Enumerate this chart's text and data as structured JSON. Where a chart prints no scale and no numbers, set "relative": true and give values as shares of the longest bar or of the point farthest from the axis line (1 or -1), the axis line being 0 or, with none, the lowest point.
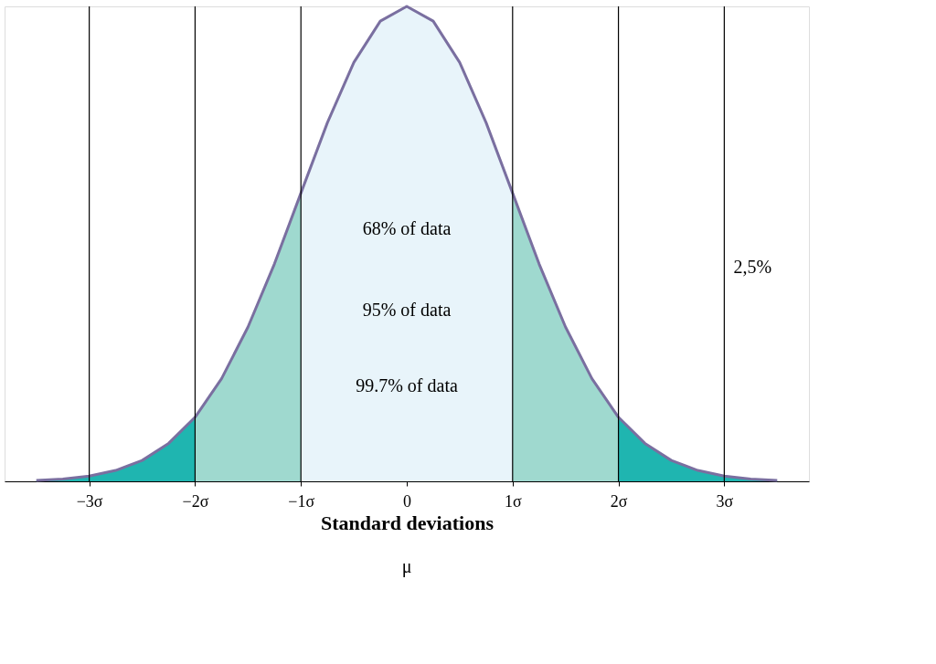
{
  "chart_data": {
    "type": "area",
    "relative": true,
    "xlabel": "Standard deviations",
    "xlim": [
      -3.8,
      3.8
    ],
    "xticks": [
      {
        "value": -3,
        "label": "−3σ"
      },
      {
        "value": -2,
        "label": "−2σ"
      },
      {
        "value": -1,
        "label": "−1σ"
      },
      {
        "value": 0,
        "label": "0"
      },
      {
        "value": 1,
        "label": "1σ"
      },
      {
        "value": 2,
        "label": "2σ"
      },
      {
        "value": 3,
        "label": "3σ"
      }
    ],
    "grid": false,
    "series": [
      {
        "color": "#1fb5b0",
        "x": [
          -3.5,
          -3.25,
          -3,
          -2.75,
          -2.5,
          -2.25,
          -2
        ],
        "values": [
          0.002,
          0.005,
          0.011,
          0.023,
          0.044,
          0.08,
          0.135
        ]
      },
      {
        "color": "#9fd9cf",
        "x": [
          -2,
          -1.75,
          -1.5,
          -1.25,
          -1
        ],
        "values": [
          0.135,
          0.216,
          0.325,
          0.458,
          0.607
        ]
      },
      {
        "color": "#e8f4fa",
        "x": [
          -1,
          -0.75,
          -0.5,
          -0.25,
          0,
          0.25,
          0.5,
          0.75,
          1
        ],
        "values": [
          0.607,
          0.755,
          0.882,
          0.969,
          1,
          0.969,
          0.882,
          0.755,
          0.607
        ]
      },
      {
        "color": "#9fd9cf",
        "x": [
          1,
          1.25,
          1.5,
          1.75,
          2
        ],
        "values": [
          0.607,
          0.458,
          0.325,
          0.216,
          0.135
        ]
      },
      {
        "color": "#1fb5b0",
        "x": [
          2,
          2.25,
          2.5,
          2.75,
          3,
          3.25,
          3.5
        ],
        "values": [
          0.135,
          0.08,
          0.044,
          0.023,
          0.011,
          0.005,
          0.002
        ]
      },
      {
        "type": "line",
        "color": "#7a6fa0",
        "x": [
          -3.5,
          -3.25,
          -3,
          -2.75,
          -2.5,
          -2.25,
          -2,
          -1.75,
          -1.5,
          -1.25,
          -1,
          -0.75,
          -0.5,
          -0.25,
          0,
          0.25,
          0.5,
          0.75,
          1,
          1.25,
          1.5,
          1.75,
          2,
          2.25,
          2.5,
          2.75,
          3,
          3.25,
          3.5
        ],
        "values": [
          0.002,
          0.005,
          0.011,
          0.023,
          0.044,
          0.08,
          0.135,
          0.216,
          0.325,
          0.458,
          0.607,
          0.755,
          0.882,
          0.969,
          1,
          0.969,
          0.882,
          0.755,
          0.607,
          0.458,
          0.325,
          0.216,
          0.135,
          0.08,
          0.044,
          0.023,
          0.011,
          0.005,
          0.002
        ]
      }
    ],
    "ref_lines": [
      {
        "axis": "x",
        "value": -3,
        "color": "#000000"
      },
      {
        "axis": "x",
        "value": -2,
        "color": "#000000"
      },
      {
        "axis": "x",
        "value": -1,
        "color": "#000000"
      },
      {
        "axis": "x",
        "value": 1,
        "color": "#000000"
      },
      {
        "axis": "x",
        "value": 2,
        "color": "#000000"
      },
      {
        "axis": "x",
        "value": 3,
        "color": "#000000"
      }
    ],
    "annotations": [
      "68% of data",
      "95% of data",
      "99.7% of data",
      "2,5%",
      "μ"
    ]
  }
}
